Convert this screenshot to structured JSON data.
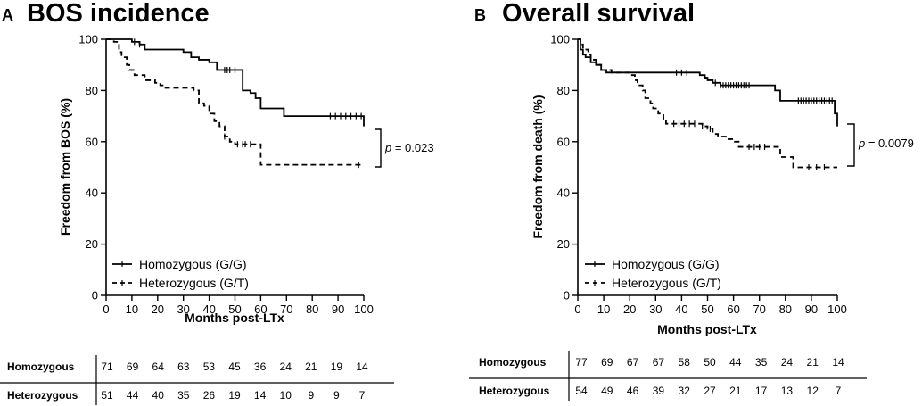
{
  "chart_data": [
    {
      "type": "line",
      "panel_label": "A",
      "title": "BOS incidence",
      "xlabel": "Months post-LTx",
      "ylabel": "Freedom from BOS (%)",
      "xlim": [
        0,
        100
      ],
      "ylim": [
        0,
        100
      ],
      "x_ticks": [
        "0",
        "10",
        "20",
        "30",
        "40",
        "50",
        "60",
        "70",
        "80",
        "90",
        "100"
      ],
      "y_ticks": [
        "0",
        "20",
        "40",
        "60",
        "80",
        "100"
      ],
      "series": [
        {
          "name": "Homozygous (G/G)",
          "style": "solid",
          "steps": [
            [
              0,
              100
            ],
            [
              8,
              100
            ],
            [
              10,
              99
            ],
            [
              13,
              98
            ],
            [
              15,
              96
            ],
            [
              28,
              96
            ],
            [
              30,
              95
            ],
            [
              33,
              93
            ],
            [
              36,
              92
            ],
            [
              40,
              91
            ],
            [
              43,
              88
            ],
            [
              52,
              88
            ],
            [
              53,
              80
            ],
            [
              56,
              79
            ],
            [
              58,
              77
            ],
            [
              60,
              73
            ],
            [
              68,
              73
            ],
            [
              69,
              70
            ],
            [
              99,
              70
            ],
            [
              100,
              66
            ]
          ],
          "censor_x": [
            11,
            13,
            46,
            47,
            48,
            50,
            87,
            89,
            91,
            93,
            95,
            97,
            99
          ]
        },
        {
          "name": "Heterozygous (G/T)",
          "style": "dashed",
          "steps": [
            [
              0,
              100
            ],
            [
              3,
              99
            ],
            [
              5,
              95
            ],
            [
              6,
              93
            ],
            [
              8,
              90
            ],
            [
              9,
              88
            ],
            [
              11,
              86
            ],
            [
              15,
              84
            ],
            [
              19,
              83
            ],
            [
              21,
              82
            ],
            [
              23,
              81
            ],
            [
              33,
              81
            ],
            [
              34,
              80
            ],
            [
              36,
              75
            ],
            [
              38,
              74
            ],
            [
              40,
              71
            ],
            [
              42,
              68
            ],
            [
              44,
              66
            ],
            [
              46,
              62
            ],
            [
              48,
              60
            ],
            [
              50,
              59
            ],
            [
              59,
              59
            ],
            [
              60,
              51
            ],
            [
              100,
              51
            ]
          ],
          "censor_x": [
            46,
            51,
            53,
            54,
            56,
            98
          ]
        }
      ],
      "legend": [
        "Homozygous (G/G)",
        "Heterozygous (G/T)"
      ],
      "legend_position": "bottom-left",
      "annotation": {
        "prefix": "p",
        "text": " = 0.023"
      },
      "risk_table": {
        "rows": [
          {
            "label": "Homozygous",
            "values": [
              "71",
              "69",
              "64",
              "63",
              "53",
              "45",
              "36",
              "24",
              "21",
              "19",
              "14"
            ]
          },
          {
            "label": "Heterozygous",
            "values": [
              "51",
              "44",
              "40",
              "35",
              "26",
              "19",
              "14",
              "10",
              "9",
              "9",
              "7"
            ]
          }
        ]
      }
    },
    {
      "type": "line",
      "panel_label": "B",
      "title": "Overall survival",
      "xlabel": "Months post-LTx",
      "ylabel": "Freedom from death (%)",
      "xlim": [
        0,
        100
      ],
      "ylim": [
        0,
        100
      ],
      "x_ticks": [
        "0",
        "10",
        "20",
        "30",
        "40",
        "50",
        "60",
        "70",
        "80",
        "90",
        "100"
      ],
      "y_ticks": [
        "0",
        "20",
        "40",
        "60",
        "80",
        "100"
      ],
      "series": [
        {
          "name": "Homozygous (G/G)",
          "style": "solid",
          "steps": [
            [
              0,
              100
            ],
            [
              1,
              96
            ],
            [
              2,
              94
            ],
            [
              3,
              93
            ],
            [
              5,
              91
            ],
            [
              7,
              90
            ],
            [
              9,
              88
            ],
            [
              11,
              87
            ],
            [
              45,
              87
            ],
            [
              47,
              86
            ],
            [
              49,
              85
            ],
            [
              50,
              84
            ],
            [
              52,
              83
            ],
            [
              55,
              82
            ],
            [
              74,
              82
            ],
            [
              76,
              80
            ],
            [
              78,
              76
            ],
            [
              98,
              76
            ],
            [
              99,
              71
            ],
            [
              100,
              66
            ]
          ],
          "censor_x": [
            38,
            40,
            42,
            53,
            55,
            56,
            57,
            58,
            59,
            60,
            61,
            62,
            63,
            64,
            65,
            66,
            85,
            86,
            87,
            88,
            89,
            90,
            91,
            92,
            93,
            94,
            95,
            96,
            97,
            98
          ]
        },
        {
          "name": "Heterozygous (G/T)",
          "style": "dashed",
          "steps": [
            [
              0,
              100
            ],
            [
              1,
              98
            ],
            [
              2,
              96
            ],
            [
              4,
              94
            ],
            [
              5,
              92
            ],
            [
              7,
              90
            ],
            [
              9,
              88
            ],
            [
              13,
              87
            ],
            [
              20,
              86
            ],
            [
              22,
              84
            ],
            [
              23,
              82
            ],
            [
              25,
              80
            ],
            [
              26,
              77
            ],
            [
              28,
              75
            ],
            [
              29,
              73
            ],
            [
              31,
              71
            ],
            [
              33,
              69
            ],
            [
              34,
              67
            ],
            [
              46,
              67
            ],
            [
              48,
              66
            ],
            [
              50,
              65
            ],
            [
              52,
              63
            ],
            [
              54,
              62
            ],
            [
              57,
              61
            ],
            [
              60,
              60
            ],
            [
              62,
              58
            ],
            [
              75,
              58
            ],
            [
              78,
              54
            ],
            [
              82,
              54
            ],
            [
              83,
              50
            ],
            [
              100,
              50
            ]
          ],
          "censor_x": [
            37,
            39,
            41,
            43,
            45,
            48,
            51,
            66,
            68,
            70,
            72,
            89,
            92,
            95
          ]
        }
      ],
      "legend": [
        "Homozygous (G/G)",
        "Heterozygous (G/T)"
      ],
      "legend_position": "bottom-left",
      "annotation": {
        "prefix": "p",
        "text": " = 0.0079"
      },
      "risk_table": {
        "rows": [
          {
            "label": "Homozygous",
            "values": [
              "77",
              "69",
              "67",
              "67",
              "58",
              "50",
              "44",
              "35",
              "24",
              "21",
              "14"
            ]
          },
          {
            "label": "Heterozygous",
            "values": [
              "54",
              "49",
              "46",
              "39",
              "32",
              "27",
              "21",
              "17",
              "13",
              "12",
              "7"
            ]
          }
        ]
      }
    }
  ]
}
